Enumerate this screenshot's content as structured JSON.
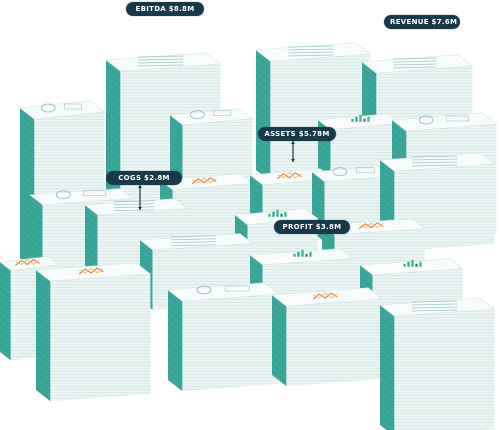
{
  "labels": {
    "ebitda": "EBITDA $8.8M",
    "revenue": "REVENUE $7.6M",
    "assets": "ASSETS $5.78M",
    "cogs": "COGS $2.8M",
    "profit": "PROFIT $3.8M"
  },
  "colors": {
    "teal": "#3aa79b",
    "teal_dark": "#2c8a80",
    "paper_light": "#eaf4f3",
    "paper_top": "#f7fbfb",
    "label_bg": "#17394a",
    "chart_red": "#e0574f",
    "chart_yellow": "#f1c232",
    "chart_green": "#3fb98a"
  },
  "icons": [
    "pie-chart-icon",
    "bar-chart-icon",
    "line-chart-icon",
    "text-document-icon"
  ]
}
